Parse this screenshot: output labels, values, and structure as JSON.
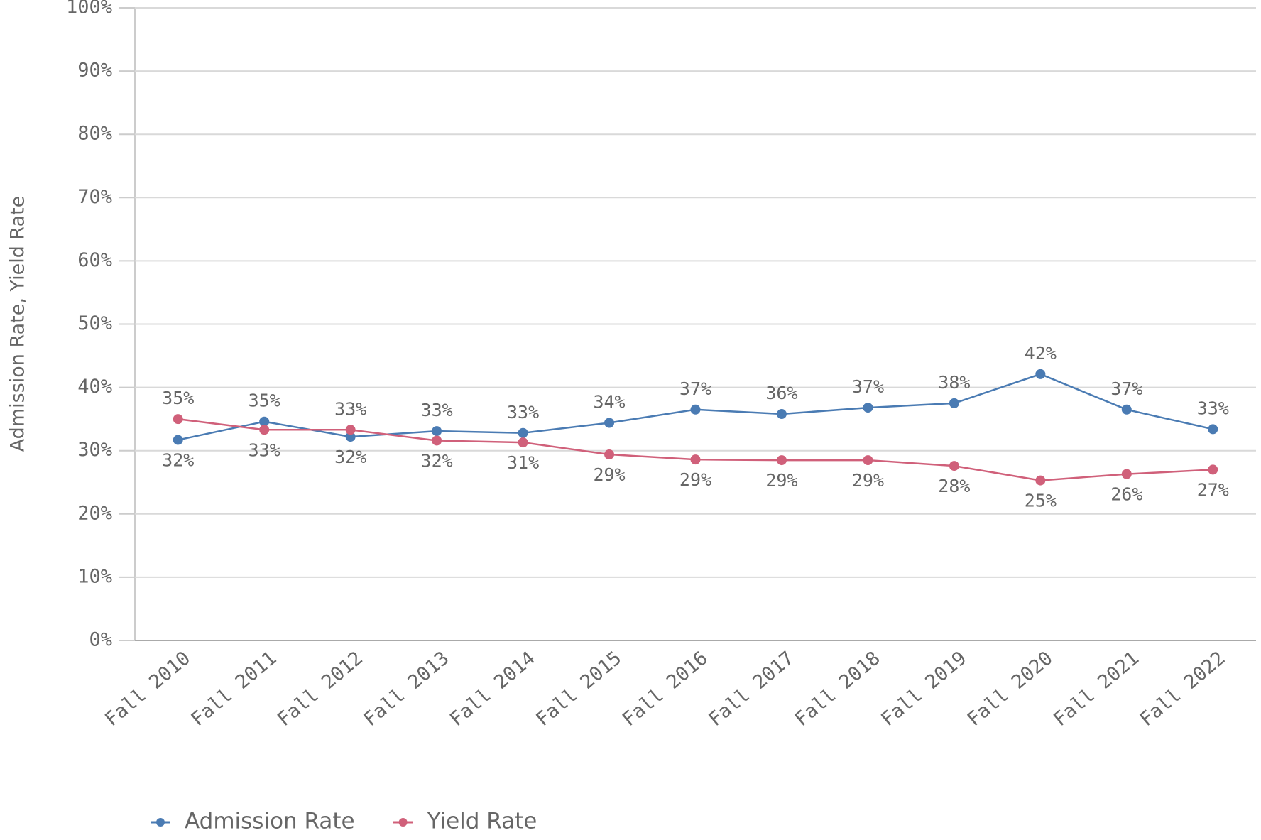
{
  "chart_data": {
    "type": "line",
    "y_label": "Admission Rate, Yield Rate",
    "categories": [
      "Fall 2010",
      "Fall 2011",
      "Fall 2012",
      "Fall 2013",
      "Fall 2014",
      "Fall 2015",
      "Fall 2016",
      "Fall 2017",
      "Fall 2018",
      "Fall 2019",
      "Fall 2020",
      "Fall 2021",
      "Fall 2022"
    ],
    "series": [
      {
        "name": "Admission Rate",
        "color": "#4a7bb3",
        "values": [
          31.7,
          34.6,
          32.2,
          33.1,
          32.8,
          34.4,
          36.5,
          35.8,
          36.8,
          37.5,
          42.1,
          36.5,
          33.4
        ],
        "value_labels": [
          "32%",
          "35%",
          "32%",
          "33%",
          "33%",
          "34%",
          "37%",
          "36%",
          "37%",
          "38%",
          "42%",
          "37%",
          "33%"
        ]
      },
      {
        "name": "Yield Rate",
        "color": "#d0607a",
        "values": [
          35.0,
          33.3,
          33.3,
          31.6,
          31.3,
          29.4,
          28.6,
          28.5,
          28.5,
          27.6,
          25.3,
          26.3,
          27.0
        ],
        "value_labels": [
          "35%",
          "33%",
          "33%",
          "32%",
          "31%",
          "29%",
          "29%",
          "29%",
          "29%",
          "28%",
          "25%",
          "26%",
          "27%"
        ]
      }
    ],
    "ylim": [
      0,
      100
    ],
    "yticks": [
      {
        "value": 0,
        "label": "0%"
      },
      {
        "value": 10,
        "label": "10%"
      },
      {
        "value": 20,
        "label": "20%"
      },
      {
        "value": 30,
        "label": "30%"
      },
      {
        "value": 40,
        "label": "40%"
      },
      {
        "value": 50,
        "label": "50%"
      },
      {
        "value": 60,
        "label": "60%"
      },
      {
        "value": 70,
        "label": "70%"
      },
      {
        "value": 80,
        "label": "80%"
      },
      {
        "value": 90,
        "label": "90%"
      },
      {
        "value": 100,
        "label": "100%"
      }
    ],
    "grid": true,
    "legend": "bottom-left"
  }
}
